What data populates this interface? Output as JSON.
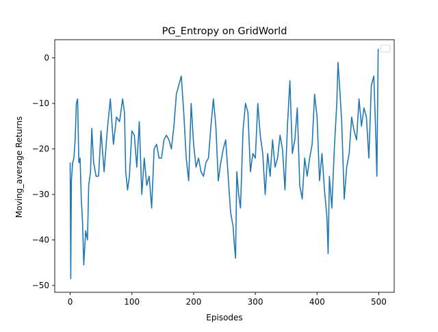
{
  "chart_data": {
    "type": "line",
    "title": "PG_Entropy on GridWorld",
    "xlabel": "Episodes",
    "ylabel": "Moving_average Returns",
    "xlim": [
      -25,
      525
    ],
    "ylim": [
      -51.5,
      4.0
    ],
    "xticks": [
      0,
      100,
      200,
      300,
      400,
      500
    ],
    "yticks": [
      -50,
      -40,
      -30,
      -20,
      -10,
      0
    ],
    "grid": false,
    "legend": {
      "location": "upper right",
      "entries": []
    },
    "series": [
      {
        "color": "#1f77b4",
        "x": [
          0,
          1,
          2,
          4,
          6,
          8,
          10,
          12,
          14,
          16,
          18,
          20,
          22,
          25,
          28,
          30,
          33,
          35,
          38,
          42,
          46,
          50,
          55,
          60,
          65,
          70,
          75,
          80,
          85,
          88,
          90,
          93,
          96,
          100,
          104,
          108,
          112,
          116,
          120,
          124,
          128,
          132,
          136,
          140,
          144,
          148,
          152,
          156,
          160,
          164,
          168,
          172,
          176,
          180,
          184,
          188,
          192,
          196,
          200,
          204,
          208,
          212,
          216,
          220,
          224,
          228,
          232,
          236,
          240,
          244,
          248,
          252,
          256,
          260,
          264,
          266,
          268,
          270,
          273,
          276,
          280,
          284,
          288,
          292,
          296,
          300,
          304,
          308,
          312,
          316,
          320,
          324,
          328,
          332,
          336,
          340,
          344,
          348,
          352,
          356,
          360,
          364,
          368,
          372,
          376,
          380,
          384,
          388,
          392,
          396,
          400,
          404,
          408,
          412,
          416,
          418,
          420,
          424,
          428,
          432,
          434,
          436,
          440,
          444,
          448,
          452,
          456,
          460,
          464,
          468,
          472,
          476,
          480,
          484,
          488,
          492,
          495,
          497,
          499
        ],
        "y": [
          -23,
          -48.5,
          -27,
          -23,
          -22,
          -18,
          -10,
          -9,
          -23,
          -22,
          -31,
          -36,
          -45.5,
          -38,
          -40,
          -28,
          -25,
          -15.5,
          -23,
          -26,
          -26,
          -16,
          -25,
          -16,
          -9,
          -19,
          -13,
          -14,
          -9,
          -12,
          -25,
          -29,
          -26,
          -16,
          -17,
          -24,
          -14,
          -30,
          -22,
          -28,
          -26,
          -33,
          -20,
          -19,
          -22,
          -22,
          -18,
          -17,
          -18,
          -20,
          -15,
          -8,
          -6,
          -4,
          -12,
          -22,
          -27,
          -10,
          -19,
          -24,
          -22,
          -25,
          -26,
          -23,
          -22,
          -15,
          -9,
          -15,
          -27,
          -23,
          -20,
          -18,
          -26,
          -34,
          -37,
          -41,
          -44,
          -25,
          -30,
          -33,
          -16,
          -10,
          -12,
          -25,
          -21,
          -22,
          -10,
          -17,
          -21,
          -30,
          -21,
          -26,
          -18,
          -24,
          -22,
          -17,
          -20,
          -29,
          -15,
          -5,
          -21,
          -18,
          -11,
          -28,
          -31,
          -22,
          -26,
          -22,
          -19,
          -8,
          -13,
          -27,
          -21,
          -29,
          -35,
          -43,
          -26,
          -33,
          -20,
          -10,
          -1,
          -5,
          -14,
          -31,
          -24,
          -21,
          -13,
          -16,
          -18,
          -9,
          -15,
          -11,
          -13,
          -22,
          -6,
          -4,
          -16,
          -26,
          2
        ]
      }
    ]
  }
}
